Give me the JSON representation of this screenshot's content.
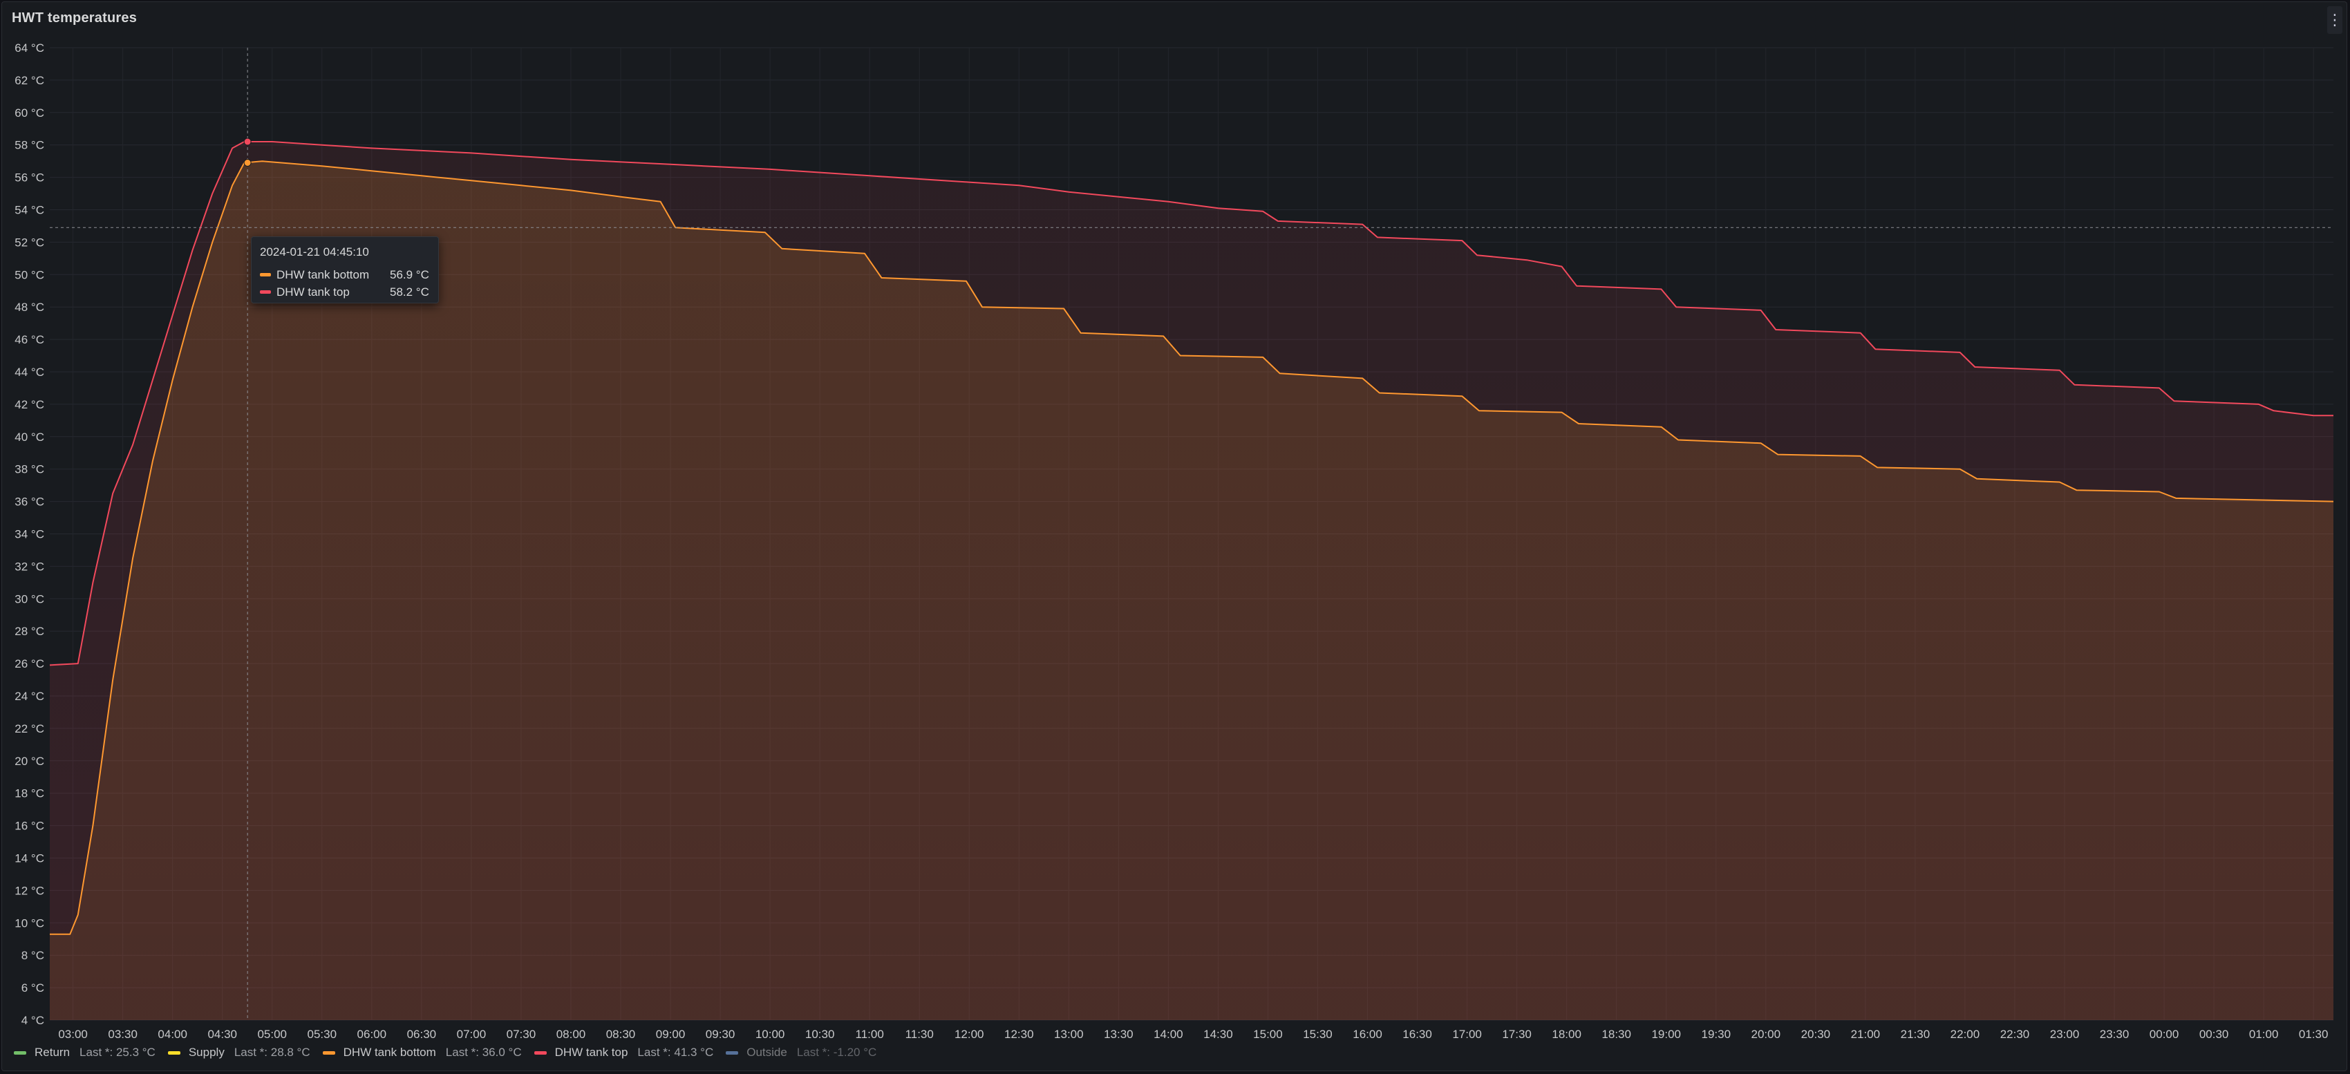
{
  "panel": {
    "title": "HWT temperatures",
    "menu_icon": "kebab-menu-icon"
  },
  "colors": {
    "background": "#181b1f",
    "grid": "#2a2d33",
    "return": "#73bf69",
    "supply": "#fade2a",
    "dhw_bottom": "#ff9830",
    "dhw_top": "#f2495c",
    "outside": "#8ab8ff"
  },
  "tooltip": {
    "time": "2024-01-21 04:45:10",
    "rows": [
      {
        "name": "DHW tank bottom",
        "value": "56.9 °C",
        "color": "#ff9830"
      },
      {
        "name": "DHW tank top",
        "value": "58.2 °C",
        "color": "#f2495c"
      }
    ]
  },
  "legend": [
    {
      "name": "Return",
      "last": "Last *: 25.3 °C",
      "color": "#73bf69",
      "dim": false
    },
    {
      "name": "Supply",
      "last": "Last *: 28.8 °C",
      "color": "#fade2a",
      "dim": false
    },
    {
      "name": "DHW tank bottom",
      "last": "Last *: 36.0 °C",
      "color": "#ff9830",
      "dim": false
    },
    {
      "name": "DHW tank top",
      "last": "Last *: 41.3 °C",
      "color": "#f2495c",
      "dim": false
    },
    {
      "name": "Outside",
      "last": "Last *: -1.20 °C",
      "color": "#8ab8ff",
      "dim": true
    }
  ],
  "chart_data": {
    "type": "line",
    "title": "HWT temperatures",
    "x_unit": "hours",
    "x_range": [
      2.7667,
      25.7
    ],
    "ylim": [
      4,
      64
    ],
    "y_unit": "°C",
    "yticks": [
      4,
      6,
      8,
      10,
      12,
      14,
      16,
      18,
      20,
      22,
      24,
      26,
      28,
      30,
      32,
      34,
      36,
      38,
      40,
      42,
      44,
      46,
      48,
      50,
      52,
      54,
      56,
      58,
      60,
      62,
      64
    ],
    "xticks": [
      {
        "v": 3.0,
        "label": "03:00"
      },
      {
        "v": 3.5,
        "label": "03:30"
      },
      {
        "v": 4.0,
        "label": "04:00"
      },
      {
        "v": 4.5,
        "label": "04:30"
      },
      {
        "v": 5.0,
        "label": "05:00"
      },
      {
        "v": 5.5,
        "label": "05:30"
      },
      {
        "v": 6.0,
        "label": "06:00"
      },
      {
        "v": 6.5,
        "label": "06:30"
      },
      {
        "v": 7.0,
        "label": "07:00"
      },
      {
        "v": 7.5,
        "label": "07:30"
      },
      {
        "v": 8.0,
        "label": "08:00"
      },
      {
        "v": 8.5,
        "label": "08:30"
      },
      {
        "v": 9.0,
        "label": "09:00"
      },
      {
        "v": 9.5,
        "label": "09:30"
      },
      {
        "v": 10.0,
        "label": "10:00"
      },
      {
        "v": 10.5,
        "label": "10:30"
      },
      {
        "v": 11.0,
        "label": "11:00"
      },
      {
        "v": 11.5,
        "label": "11:30"
      },
      {
        "v": 12.0,
        "label": "12:00"
      },
      {
        "v": 12.5,
        "label": "12:30"
      },
      {
        "v": 13.0,
        "label": "13:00"
      },
      {
        "v": 13.5,
        "label": "13:30"
      },
      {
        "v": 14.0,
        "label": "14:00"
      },
      {
        "v": 14.5,
        "label": "14:30"
      },
      {
        "v": 15.0,
        "label": "15:00"
      },
      {
        "v": 15.5,
        "label": "15:30"
      },
      {
        "v": 16.0,
        "label": "16:00"
      },
      {
        "v": 16.5,
        "label": "16:30"
      },
      {
        "v": 17.0,
        "label": "17:00"
      },
      {
        "v": 17.5,
        "label": "17:30"
      },
      {
        "v": 18.0,
        "label": "18:00"
      },
      {
        "v": 18.5,
        "label": "18:30"
      },
      {
        "v": 19.0,
        "label": "19:00"
      },
      {
        "v": 19.5,
        "label": "19:30"
      },
      {
        "v": 20.0,
        "label": "20:00"
      },
      {
        "v": 20.5,
        "label": "20:30"
      },
      {
        "v": 21.0,
        "label": "21:00"
      },
      {
        "v": 21.5,
        "label": "21:30"
      },
      {
        "v": 22.0,
        "label": "22:00"
      },
      {
        "v": 22.5,
        "label": "22:30"
      },
      {
        "v": 23.0,
        "label": "23:00"
      },
      {
        "v": 23.5,
        "label": "23:30"
      },
      {
        "v": 24.0,
        "label": "00:00"
      },
      {
        "v": 24.5,
        "label": "00:30"
      },
      {
        "v": 25.0,
        "label": "01:00"
      },
      {
        "v": 25.5,
        "label": "01:30"
      }
    ],
    "grid": true,
    "threshold_y": 52.9,
    "cursor_x": 4.7528,
    "series": [
      {
        "name": "DHW tank bottom",
        "color": "#ff9830",
        "points": [
          [
            2.7667,
            9.3
          ],
          [
            2.97,
            9.3
          ],
          [
            3.05,
            10.5
          ],
          [
            3.2,
            16
          ],
          [
            3.4,
            25
          ],
          [
            3.6,
            32.5
          ],
          [
            3.8,
            38.5
          ],
          [
            4.0,
            43.5
          ],
          [
            4.2,
            48
          ],
          [
            4.4,
            52
          ],
          [
            4.6,
            55.5
          ],
          [
            4.72,
            56.9
          ],
          [
            4.9,
            57.0
          ],
          [
            5.5,
            56.7
          ],
          [
            6.0,
            56.4
          ],
          [
            6.5,
            56.1
          ],
          [
            7.0,
            55.8
          ],
          [
            7.5,
            55.5
          ],
          [
            8.0,
            55.2
          ],
          [
            8.5,
            54.8
          ],
          [
            8.9,
            54.5
          ],
          [
            9.05,
            52.9
          ],
          [
            9.95,
            52.6
          ],
          [
            10.12,
            51.6
          ],
          [
            10.95,
            51.3
          ],
          [
            11.12,
            49.8
          ],
          [
            11.97,
            49.6
          ],
          [
            12.13,
            48.0
          ],
          [
            12.95,
            47.9
          ],
          [
            13.12,
            46.4
          ],
          [
            13.95,
            46.2
          ],
          [
            14.12,
            45.0
          ],
          [
            14.95,
            44.9
          ],
          [
            15.12,
            43.9
          ],
          [
            15.95,
            43.6
          ],
          [
            16.12,
            42.7
          ],
          [
            16.95,
            42.5
          ],
          [
            17.12,
            41.6
          ],
          [
            17.95,
            41.5
          ],
          [
            18.12,
            40.8
          ],
          [
            18.95,
            40.6
          ],
          [
            19.12,
            39.8
          ],
          [
            19.95,
            39.6
          ],
          [
            20.12,
            38.9
          ],
          [
            20.95,
            38.8
          ],
          [
            21.12,
            38.1
          ],
          [
            21.95,
            38.0
          ],
          [
            22.12,
            37.4
          ],
          [
            22.95,
            37.2
          ],
          [
            23.12,
            36.7
          ],
          [
            23.95,
            36.6
          ],
          [
            24.12,
            36.2
          ],
          [
            25.7,
            36.0
          ]
        ]
      },
      {
        "name": "DHW tank top",
        "color": "#f2495c",
        "points": [
          [
            2.7667,
            25.9
          ],
          [
            3.05,
            26.0
          ],
          [
            3.2,
            31
          ],
          [
            3.4,
            36.5
          ],
          [
            3.6,
            39.5
          ],
          [
            3.8,
            43.5
          ],
          [
            4.0,
            47.5
          ],
          [
            4.2,
            51.5
          ],
          [
            4.4,
            55
          ],
          [
            4.6,
            57.8
          ],
          [
            4.72,
            58.2
          ],
          [
            5.0,
            58.2
          ],
          [
            5.5,
            58.0
          ],
          [
            6.0,
            57.8
          ],
          [
            7.0,
            57.5
          ],
          [
            8.0,
            57.1
          ],
          [
            9.0,
            56.8
          ],
          [
            10.0,
            56.5
          ],
          [
            11.0,
            56.1
          ],
          [
            12.0,
            55.7
          ],
          [
            12.5,
            55.5
          ],
          [
            13.0,
            55.1
          ],
          [
            13.5,
            54.8
          ],
          [
            14.0,
            54.5
          ],
          [
            14.5,
            54.1
          ],
          [
            14.95,
            53.9
          ],
          [
            15.1,
            53.3
          ],
          [
            15.95,
            53.1
          ],
          [
            16.1,
            52.3
          ],
          [
            16.95,
            52.1
          ],
          [
            17.1,
            51.2
          ],
          [
            17.6,
            50.9
          ],
          [
            17.95,
            50.5
          ],
          [
            18.1,
            49.3
          ],
          [
            18.95,
            49.1
          ],
          [
            19.1,
            48.0
          ],
          [
            19.95,
            47.8
          ],
          [
            20.1,
            46.6
          ],
          [
            20.95,
            46.4
          ],
          [
            21.1,
            45.4
          ],
          [
            21.95,
            45.2
          ],
          [
            22.1,
            44.3
          ],
          [
            22.95,
            44.1
          ],
          [
            23.1,
            43.2
          ],
          [
            23.95,
            43.0
          ],
          [
            24.1,
            42.2
          ],
          [
            24.95,
            42.0
          ],
          [
            25.1,
            41.6
          ],
          [
            25.5,
            41.3
          ],
          [
            25.7,
            41.3
          ]
        ]
      }
    ]
  }
}
